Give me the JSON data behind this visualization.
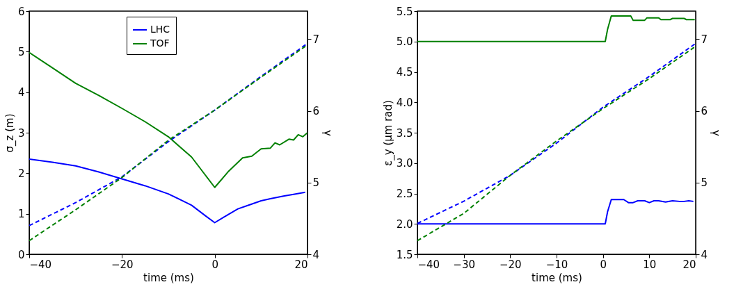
{
  "chart_data": [
    {
      "type": "line",
      "xlabel": "time (ms)",
      "ylabel": "σ_z (m)",
      "y2label": "γ",
      "xlim": [
        -40,
        20
      ],
      "xticks": [
        -40,
        -20,
        0,
        20
      ],
      "ylim": [
        0,
        6
      ],
      "yticks": [
        0,
        1,
        2,
        3,
        4,
        5,
        6
      ],
      "y2lim": [
        4,
        7.39
      ],
      "y2ticks": [
        4,
        5,
        6,
        7
      ],
      "legend": "top",
      "grid": false,
      "series": [
        {
          "name": "LHC",
          "color": "#0000ff",
          "line_style": "solid",
          "x": [
            -40,
            -35,
            -30,
            -25,
            -20,
            -15,
            -10,
            -5,
            -2,
            0,
            2,
            5,
            7,
            10,
            12,
            15,
            17,
            19.5
          ],
          "values": [
            2.35,
            2.27,
            2.18,
            2.03,
            1.86,
            1.69,
            1.49,
            1.21,
            0.95,
            0.78,
            0.92,
            1.12,
            1.2,
            1.32,
            1.37,
            1.44,
            1.48,
            1.53
          ]
        },
        {
          "name": "TOF",
          "color": "#008000",
          "line_style": "solid",
          "x": [
            -40,
            -35,
            -30,
            -25,
            -20,
            -15,
            -10,
            -5,
            -2,
            0,
            3,
            6,
            8,
            10,
            12,
            13,
            14,
            16,
            17,
            18,
            19,
            20
          ],
          "values": [
            4.98,
            4.6,
            4.22,
            3.92,
            3.6,
            3.27,
            2.9,
            2.4,
            1.95,
            1.65,
            2.05,
            2.38,
            2.42,
            2.6,
            2.62,
            2.75,
            2.7,
            2.84,
            2.82,
            2.95,
            2.9,
            3.0
          ]
        },
        {
          "color": "#0000ff",
          "line_style": "dashed",
          "axis": "y2",
          "x": [
            -40,
            -30,
            -20,
            -10,
            0,
            10,
            20
          ],
          "values": [
            4.4,
            4.72,
            5.08,
            5.57,
            6.01,
            6.48,
            6.94
          ]
        },
        {
          "color": "#008000",
          "line_style": "dashed",
          "axis": "y2",
          "x": [
            -40,
            -30,
            -20,
            -10,
            0,
            10,
            20
          ],
          "values": [
            4.19,
            4.62,
            5.07,
            5.59,
            6.01,
            6.47,
            6.92
          ]
        }
      ]
    },
    {
      "type": "line",
      "xlabel": "time (ms)",
      "ylabel": "ε_y (μm rad)",
      "y2label": "γ",
      "xlim": [
        -40,
        20
      ],
      "xticks": [
        -40,
        -30,
        -20,
        -10,
        0,
        10,
        20
      ],
      "ylim": [
        1.5,
        5.5
      ],
      "yticks": [
        {
          "value": 1.5,
          "label": "1.5"
        },
        {
          "value": 2,
          "label": "2.0"
        },
        {
          "value": 2.5,
          "label": "2.5"
        },
        {
          "value": 3,
          "label": "3.0"
        },
        {
          "value": 3.5,
          "label": "3.5"
        },
        {
          "value": 4,
          "label": "4.0"
        },
        {
          "value": 4.5,
          "label": "4.5"
        },
        {
          "value": 5,
          "label": "5.0"
        },
        {
          "value": 5.5,
          "label": "5.5"
        }
      ],
      "y2lim": [
        4,
        7.39
      ],
      "y2ticks": [
        4,
        5,
        6,
        7
      ],
      "legend": "left",
      "grid": false,
      "series": [
        {
          "name": "LHC",
          "color": "#0000ff",
          "line_style": "solid",
          "x": [
            -40,
            0.5,
            1,
            1.8,
            4.5,
            5.5,
            6.5,
            7.5,
            9,
            10,
            11,
            12,
            13.5,
            15,
            16.5,
            17.5,
            18.5,
            19.5
          ],
          "values": [
            2.0,
            2.0,
            2.2,
            2.4,
            2.4,
            2.35,
            2.35,
            2.38,
            2.38,
            2.35,
            2.38,
            2.38,
            2.36,
            2.38,
            2.37,
            2.37,
            2.38,
            2.37
          ]
        },
        {
          "name": "TOF",
          "color": "#008000",
          "line_style": "solid",
          "x": [
            -40,
            0.5,
            1,
            1.8,
            6,
            6.5,
            9,
            9.5,
            12,
            12.5,
            14.5,
            15,
            17.5,
            18,
            19.8
          ],
          "values": [
            5.0,
            5.0,
            5.2,
            5.42,
            5.42,
            5.35,
            5.35,
            5.39,
            5.39,
            5.36,
            5.36,
            5.38,
            5.38,
            5.36,
            5.36
          ]
        },
        {
          "color": "#0000ff",
          "line_style": "dashed",
          "axis": "y2",
          "x": [
            -40,
            -30,
            -20,
            -10,
            0,
            10,
            20
          ],
          "values": [
            4.43,
            4.74,
            5.1,
            5.55,
            6.05,
            6.48,
            6.94
          ]
        },
        {
          "color": "#008000",
          "line_style": "dashed",
          "axis": "y2",
          "x": [
            -40,
            -30,
            -20,
            -10,
            0,
            10,
            20
          ],
          "values": [
            4.19,
            4.57,
            5.1,
            5.58,
            6.03,
            6.45,
            6.9
          ]
        }
      ]
    }
  ]
}
